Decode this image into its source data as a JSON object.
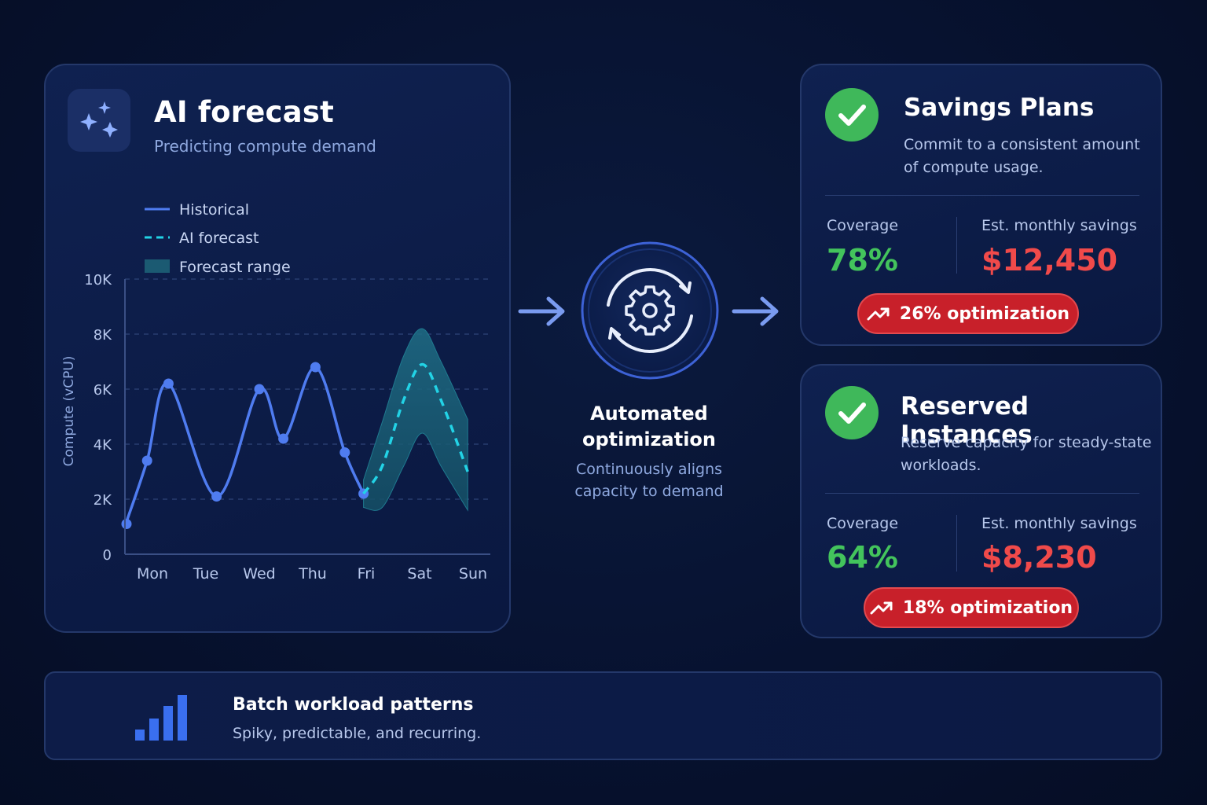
{
  "forecast": {
    "title": "AI forecast",
    "subtitle": "Predicting compute demand",
    "icon": "sparkles-icon"
  },
  "chart_data": {
    "type": "line",
    "ylabel": "Compute (vCPU)",
    "xlabel": "",
    "ylim": [
      0,
      10000
    ],
    "y_ticks": [
      0,
      2000,
      4000,
      6000,
      8000,
      10000
    ],
    "y_tick_labels": [
      "0",
      "2K",
      "4K",
      "6K",
      "8K",
      "10K"
    ],
    "x_tick_labels": [
      "Mon",
      "Tue",
      "Wed",
      "Thu",
      "Fri",
      "Sat",
      "Sun"
    ],
    "grid": true,
    "legend_position": "top-left",
    "legend": [
      {
        "label": "Historical",
        "color": "#4f7cf0",
        "style": "solid"
      },
      {
        "label": "AI forecast",
        "color": "#22d3e6",
        "style": "dashed"
      },
      {
        "label": "Forecast range",
        "color": "#1b5a72",
        "style": "band"
      }
    ],
    "series": [
      {
        "name": "Historical",
        "x": [
          -0.5,
          -0.1,
          0.3,
          1.2,
          2.0,
          2.45,
          3.05,
          3.6,
          3.95
        ],
        "y": [
          1100,
          3400,
          6200,
          2100,
          6000,
          4200,
          6800,
          3700,
          2200
        ]
      },
      {
        "name": "AI forecast",
        "x": [
          3.95,
          4.3,
          4.7,
          5.05,
          5.4,
          5.9
        ],
        "y": [
          2200,
          3200,
          5600,
          6900,
          5600,
          3000
        ]
      },
      {
        "name": "Forecast range",
        "x": [
          3.95,
          4.3,
          4.7,
          5.05,
          5.4,
          5.9
        ],
        "upper": [
          2700,
          4800,
          7200,
          8200,
          7000,
          4900
        ],
        "lower": [
          1700,
          1700,
          3200,
          4400,
          3200,
          1600
        ]
      }
    ]
  },
  "optimization": {
    "title": "Automated optimization",
    "subtitle": "Continuously aligns capacity to demand",
    "icon": "gear-sync-icon"
  },
  "plans": [
    {
      "title": "Savings Plans",
      "description": "Commit to a consistent amount of compute usage.",
      "coverage_label": "Coverage",
      "coverage_value": "78%",
      "savings_label": "Est. monthly savings",
      "savings_value": "$12,450",
      "badge": "26% optimization"
    },
    {
      "title": "Reserved Instances",
      "description": "Reserve capacity for steady-state workloads.",
      "coverage_label": "Coverage",
      "coverage_value": "64%",
      "savings_label": "Est. monthly savings",
      "savings_value": "$8,230",
      "badge": "18% optimization"
    }
  ],
  "batch": {
    "title": "Batch workload patterns",
    "subtitle": "Spiky, predictable, and recurring.",
    "icon": "bar-chart-icon"
  },
  "colors": {
    "accent_blue": "#4f7cf0",
    "forecast_cyan": "#22d3e6",
    "green": "#43c45c",
    "red": "#f04a4a"
  }
}
